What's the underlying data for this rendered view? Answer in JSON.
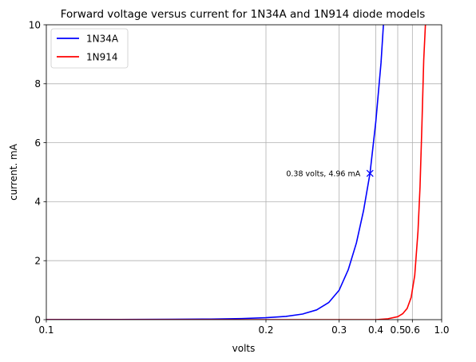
{
  "chart_data": {
    "type": "line",
    "title": "Forward voltage versus current for 1N34A and 1N914 diode models",
    "xlabel": "volts",
    "ylabel": "current. mA",
    "x_scale": "reciprocal",
    "xlim": [
      0.1,
      1.0
    ],
    "ylim": [
      0,
      10
    ],
    "x_ticks": [
      0.1,
      0.2,
      0.3,
      0.4,
      0.5,
      0.6,
      1.0
    ],
    "x_tick_labels": [
      "0.1",
      "0.2",
      "0.3",
      "0.4",
      "0.5",
      "0.6",
      "1.0"
    ],
    "y_ticks": [
      0,
      2,
      4,
      6,
      8,
      10
    ],
    "y_tick_labels": [
      "0",
      "2",
      "4",
      "6",
      "8",
      "10"
    ],
    "grid": true,
    "legend_position": "top-left",
    "series": [
      {
        "name": "1N34A",
        "color": "#0000ff",
        "x": [
          0.1,
          0.12,
          0.14,
          0.16,
          0.18,
          0.2,
          0.22,
          0.24,
          0.26,
          0.28,
          0.3,
          0.32,
          0.34,
          0.36,
          0.38,
          0.4,
          0.42,
          0.43
        ],
        "y": [
          0.003,
          0.006,
          0.011,
          0.02,
          0.037,
          0.065,
          0.11,
          0.19,
          0.33,
          0.58,
          1.0,
          1.7,
          2.6,
          3.7,
          4.96,
          6.7,
          8.7,
          10.0
        ]
      },
      {
        "name": "1N914",
        "color": "#ff0000",
        "x": [
          0.1,
          0.2,
          0.3,
          0.4,
          0.45,
          0.5,
          0.53,
          0.56,
          0.59,
          0.62,
          0.65,
          0.67,
          0.69,
          0.71,
          0.73
        ],
        "y": [
          0.0,
          0.0,
          0.0,
          0.0,
          0.03,
          0.1,
          0.2,
          0.38,
          0.75,
          1.5,
          3.0,
          4.5,
          6.6,
          8.8,
          10.0
        ]
      }
    ],
    "annotation": {
      "label": "0.38 volts, 4.96 mA",
      "x": 0.38,
      "y": 4.96,
      "marker": "x",
      "color": "#0000ff"
    }
  }
}
